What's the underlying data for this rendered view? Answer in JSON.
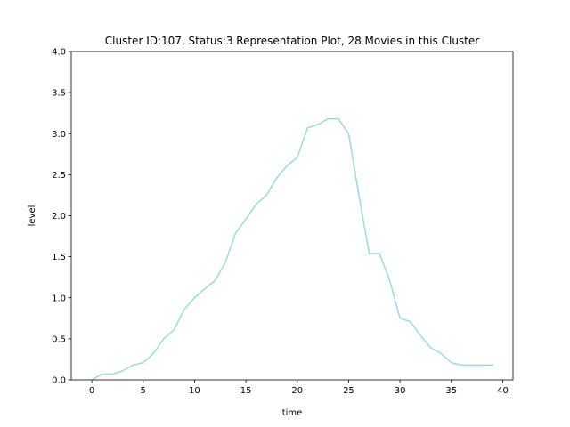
{
  "chart_data": {
    "type": "line",
    "title": "Cluster ID:107, Status:3 Representation Plot, 28 Movies in this Cluster",
    "xlabel": "time",
    "ylabel": "level",
    "xlim": [
      -2,
      41
    ],
    "ylim": [
      0,
      4
    ],
    "xticks": [
      0,
      5,
      10,
      15,
      20,
      25,
      30,
      35,
      40
    ],
    "yticks": [
      0.0,
      0.5,
      1.0,
      1.5,
      2.0,
      2.5,
      3.0,
      3.5,
      4.0
    ],
    "ytick_labels": [
      "0.0",
      "0.5",
      "1.0",
      "1.5",
      "2.0",
      "2.5",
      "3.0",
      "3.5",
      "4.0"
    ],
    "grid": false,
    "series": [
      {
        "color": "#9ed9e0",
        "x": [
          0,
          1,
          2,
          3,
          4,
          5,
          6,
          7,
          8,
          9,
          10,
          11,
          12,
          13,
          14,
          15,
          16,
          17,
          18,
          19,
          20,
          21,
          22,
          23,
          24,
          25,
          26,
          27,
          28,
          29,
          30,
          31,
          32,
          33,
          34,
          35,
          36,
          37,
          38,
          39
        ],
        "y": [
          0.0,
          0.07,
          0.07,
          0.11,
          0.18,
          0.21,
          0.32,
          0.5,
          0.61,
          0.86,
          1.0,
          1.11,
          1.21,
          1.43,
          1.79,
          1.96,
          2.14,
          2.25,
          2.46,
          2.61,
          2.71,
          3.07,
          3.11,
          3.18,
          3.18,
          3.0,
          2.25,
          1.54,
          1.54,
          1.21,
          0.75,
          0.71,
          0.54,
          0.39,
          0.32,
          0.21,
          0.18,
          0.18,
          0.18,
          0.18
        ]
      }
    ]
  }
}
